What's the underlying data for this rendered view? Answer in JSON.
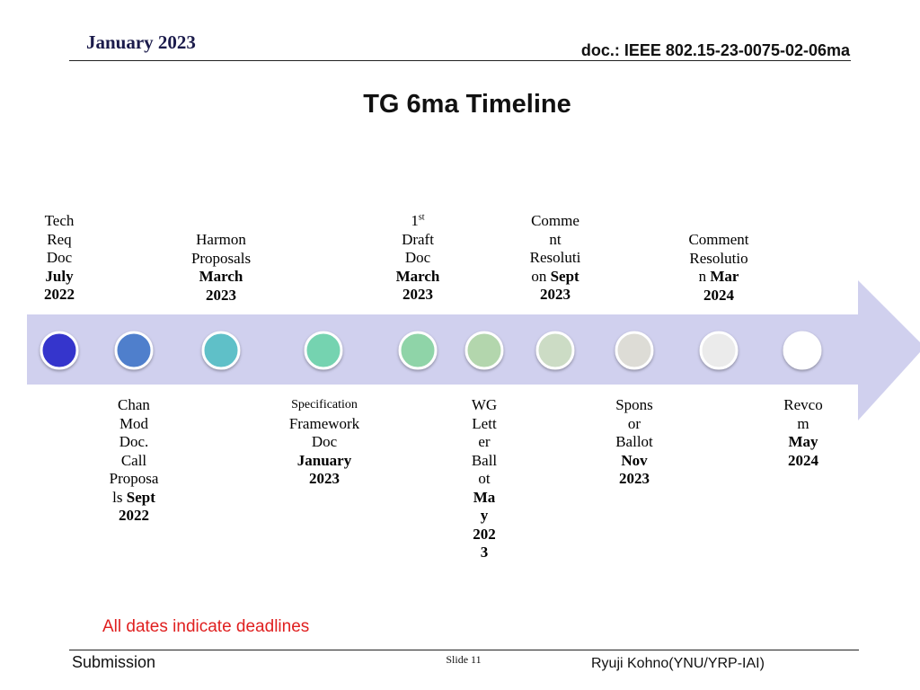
{
  "header": {
    "date": "January 2023",
    "doc": "doc.: IEEE 802.15-23-0075-02-06ma"
  },
  "title": "TG 6ma Timeline",
  "timeline": {
    "above": [
      {
        "lines": [
          "Tech",
          "Req",
          "Doc"
        ],
        "date": [
          "July",
          "2022"
        ]
      },
      {
        "lines": [
          "Harmon",
          "Proposals"
        ],
        "date": [
          "March",
          "2023"
        ]
      },
      {
        "lines": [
          "Draft",
          "Doc"
        ],
        "ordinal": "1",
        "ordinal_suffix": "st",
        "date": [
          "March",
          "2023"
        ]
      },
      {
        "lines": [
          "Comme",
          "nt",
          "Resoluti"
        ],
        "prefix": "on",
        "date": [
          "Sept",
          "2023"
        ]
      },
      {
        "lines": [
          "Comment",
          "Resolutio"
        ],
        "prefix": "n",
        "date": [
          "Mar",
          "2024"
        ]
      }
    ],
    "below": [
      {
        "lines": [
          "Chan",
          "Mod",
          "Doc.",
          "Call",
          "Proposa"
        ],
        "prefix": "ls",
        "date": [
          "Sept",
          "2022"
        ]
      },
      {
        "small": "Specification",
        "lines": [
          "Framework",
          "Doc"
        ],
        "date": [
          "January",
          "2023"
        ]
      },
      {
        "lines": [
          "WG",
          "Lett",
          "er",
          "Ball",
          "ot"
        ],
        "date": [
          "Ma",
          "y",
          "202",
          "3"
        ]
      },
      {
        "lines": [
          "Spons",
          "or",
          "Ballot"
        ],
        "date": [
          "Nov",
          "2023"
        ]
      },
      {
        "lines": [
          "Revco",
          "m"
        ],
        "date": [
          "May",
          "2024"
        ]
      }
    ],
    "milestone_colors": [
      "#3434cc",
      "#4f7fcc",
      "#5ec0c8",
      "#74d3b0",
      "#8fd4a8",
      "#b3d6ad",
      "#ccdcc5",
      "#dddcd6",
      "#ebebeb",
      "#ffffff"
    ],
    "arrow_color": "#d0d0ee"
  },
  "note": "All dates indicate deadlines",
  "footer": {
    "left": "Submission",
    "slide": "Slide 11",
    "right": "Ryuji Kohno(YNU/YRP-IAI)"
  }
}
